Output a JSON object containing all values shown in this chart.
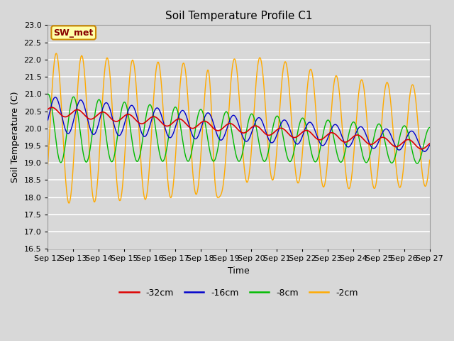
{
  "title": "Soil Temperature Profile C1",
  "xlabel": "Time",
  "ylabel": "Soil Temperature (C)",
  "ylim": [
    16.5,
    23.0
  ],
  "x_tick_labels": [
    "Sep 12",
    "Sep 13",
    "Sep 14",
    "Sep 15",
    "Sep 16",
    "Sep 17",
    "Sep 18",
    "Sep 19",
    "Sep 20",
    "Sep 21",
    "Sep 22",
    "Sep 23",
    "Sep 24",
    "Sep 25",
    "Sep 26",
    "Sep 27"
  ],
  "legend_labels": [
    "-32cm",
    "-16cm",
    "-8cm",
    "-2cm"
  ],
  "legend_colors": [
    "#dd0000",
    "#0000cc",
    "#00bb00",
    "#ffaa00"
  ],
  "bg_color": "#d8d8d8",
  "annotation_text": "SW_met",
  "annotation_bg": "#ffffaa",
  "annotation_border": "#cc8800",
  "annotation_text_color": "#880000"
}
